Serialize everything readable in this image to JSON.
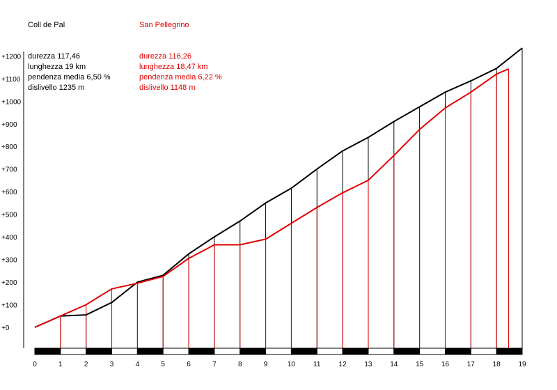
{
  "colors": {
    "series1": "#000000",
    "series2": "#e00000"
  },
  "legend": [
    {
      "name": "Coll de Pal",
      "stats": [
        "durezza 117,46",
        "lunghezza 19 km",
        "pendenza media 6,50 %",
        "dislivello 1235 m"
      ]
    },
    {
      "name": "San Pellegrino",
      "stats": [
        "durezza 116,26",
        "lunghezza 18,47 km",
        "pendenza media 6,22 %",
        "dislivello 1148 m"
      ]
    }
  ],
  "chart_data": {
    "type": "line",
    "xlabel": "",
    "ylabel": "",
    "xlim": [
      0,
      19
    ],
    "ylim": [
      -80,
      1240
    ],
    "x_ticks": [
      "0",
      "1",
      "2",
      "3",
      "4",
      "5",
      "6",
      "7",
      "8",
      "9",
      "10",
      "11",
      "12",
      "13",
      "14",
      "15",
      "16",
      "17",
      "18",
      "19"
    ],
    "y_ticks": [
      "+0",
      "+100",
      "+200",
      "+300",
      "+400",
      "+500",
      "+600",
      "+700",
      "+800",
      "+900",
      "+1000",
      "+1100",
      "+1200"
    ],
    "grid": false,
    "series": [
      {
        "name": "Coll de Pal",
        "color": "#000000",
        "x": [
          0,
          1,
          2,
          3,
          4,
          5,
          6,
          7,
          8,
          9,
          10,
          11,
          12,
          13,
          14,
          15,
          16,
          17,
          18,
          19
        ],
        "y": [
          0,
          50,
          55,
          110,
          200,
          230,
          325,
          400,
          470,
          550,
          615,
          700,
          780,
          840,
          910,
          975,
          1040,
          1090,
          1145,
          1235
        ]
      },
      {
        "name": "San Pellegrino",
        "color": "#e00000",
        "x": [
          0,
          1,
          2,
          3,
          4,
          5,
          6,
          7,
          8,
          9,
          10,
          11,
          12,
          13,
          14,
          15,
          16,
          17,
          18,
          18.47
        ],
        "y": [
          0,
          50,
          100,
          170,
          195,
          225,
          305,
          365,
          365,
          390,
          460,
          530,
          595,
          650,
          760,
          875,
          970,
          1040,
          1120,
          1143
        ]
      }
    ]
  }
}
